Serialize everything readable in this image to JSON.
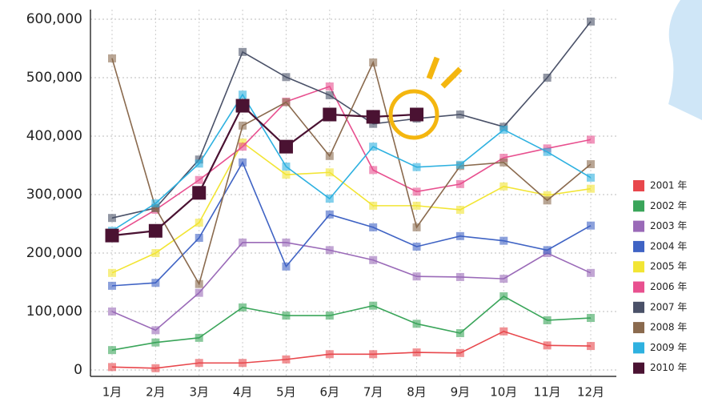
{
  "chart_data": {
    "type": "line",
    "categories": [
      "1月",
      "2月",
      "3月",
      "4月",
      "5月",
      "6月",
      "7月",
      "8月",
      "9月",
      "10月",
      "11月",
      "12月"
    ],
    "ylim": [
      0,
      600000
    ],
    "yticks": [
      0,
      {
        "value": 100000,
        "label": "100,000"
      },
      {
        "value": 200000,
        "label": "200,000"
      },
      {
        "value": 300000,
        "label": "300,000"
      },
      {
        "value": 400000,
        "label": "400,000"
      },
      {
        "value": 500000,
        "label": "500,000"
      },
      {
        "value": 600000,
        "label": "600,000"
      }
    ],
    "grid": true,
    "legend": "right",
    "series": [
      {
        "name": "2001 年",
        "color": "#e8474c",
        "values": [
          5000,
          3000,
          12000,
          12000,
          18000,
          27000,
          27000,
          30000,
          29000,
          66000,
          42000,
          41000
        ]
      },
      {
        "name": "2002 年",
        "color": "#3aa55a",
        "values": [
          34000,
          47000,
          55000,
          107000,
          93000,
          93000,
          110000,
          79000,
          63000,
          126000,
          85000,
          89000
        ]
      },
      {
        "name": "2003 年",
        "color": "#9a6ab8",
        "values": [
          100000,
          68000,
          132000,
          218000,
          218000,
          205000,
          188000,
          160000,
          159000,
          156000,
          200000,
          166000
        ]
      },
      {
        "name": "2004 年",
        "color": "#3f63c4",
        "values": [
          144000,
          149000,
          226000,
          355000,
          177000,
          266000,
          244000,
          211000,
          229000,
          221000,
          205000,
          247000
        ]
      },
      {
        "name": "2005 年",
        "color": "#f2e534",
        "values": [
          166000,
          200000,
          252000,
          389000,
          334000,
          338000,
          281000,
          281000,
          274000,
          314000,
          299000,
          310000
        ]
      },
      {
        "name": "2006 年",
        "color": "#e8508f",
        "values": [
          230000,
          274000,
          325000,
          382000,
          459000,
          485000,
          342000,
          305000,
          318000,
          363000,
          379000,
          394000
        ]
      },
      {
        "name": "2007 年",
        "color": "#4a5168",
        "values": [
          260000,
          277000,
          360000,
          544000,
          501000,
          470000,
          421000,
          430000,
          437000,
          416000,
          500000,
          596000
        ]
      },
      {
        "name": "2008 年",
        "color": "#8a6a4e",
        "values": [
          533000,
          277000,
          147000,
          418000,
          458000,
          366000,
          526000,
          244000,
          349000,
          355000,
          290000,
          352000
        ]
      },
      {
        "name": "2009 年",
        "color": "#2eb1e0",
        "values": [
          238000,
          285000,
          353000,
          471000,
          348000,
          293000,
          382000,
          347000,
          351000,
          411000,
          373000,
          329000
        ]
      },
      {
        "name": "2010 年",
        "color": "#4a1232",
        "values": [
          230000,
          238000,
          303000,
          452000,
          382000,
          437000,
          433000,
          437000,
          null,
          null,
          null,
          null
        ]
      }
    ]
  }
}
